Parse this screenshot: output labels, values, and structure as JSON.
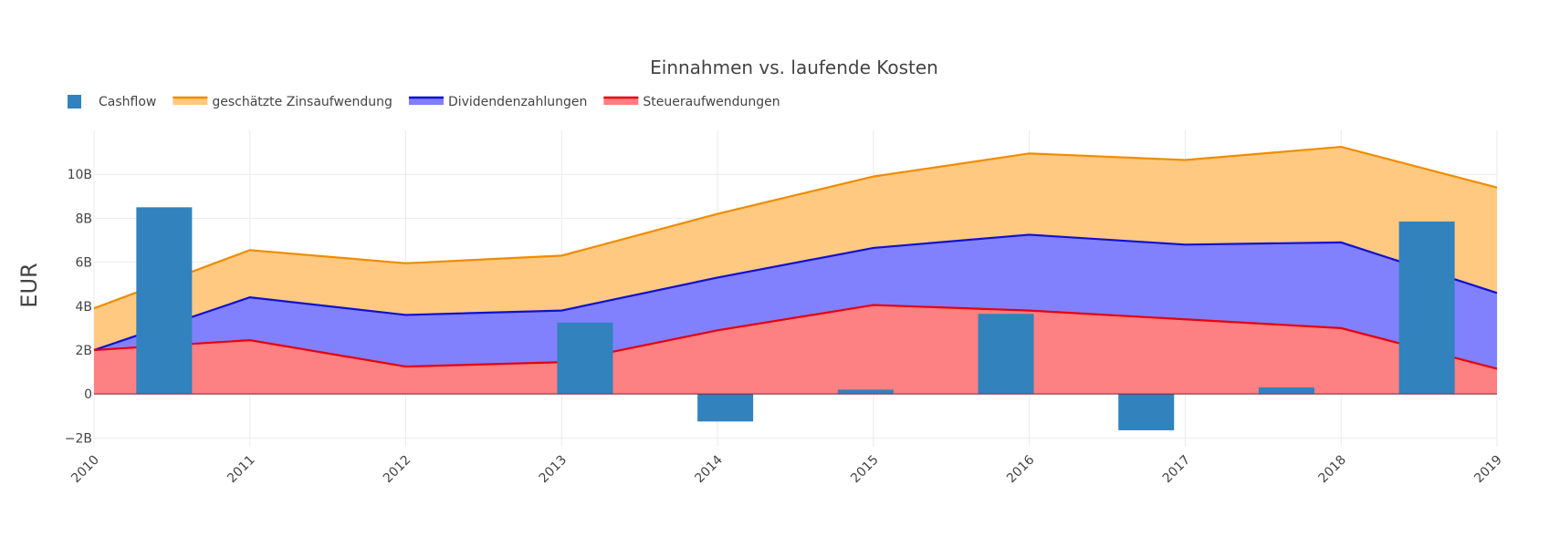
{
  "chart_data": {
    "type": "area",
    "title": "Einnahmen vs. laufende Kosten",
    "ylabel": "EUR",
    "xlabel": "",
    "x": [
      2010,
      2011,
      2012,
      2013,
      2014,
      2015,
      2016,
      2017,
      2018,
      2019
    ],
    "xlim": [
      2010,
      2019
    ],
    "ylim": [
      -2.4,
      12
    ],
    "yticks": [
      -2,
      0,
      2,
      4,
      6,
      8,
      10
    ],
    "ytick_labels": [
      "−2B",
      "0",
      "2B",
      "4B",
      "6B",
      "8B",
      "10B"
    ],
    "legend_position": "top-left",
    "grid": true,
    "series": [
      {
        "name": "Steueraufwendungen",
        "kind": "area",
        "color": "#e8000b",
        "fill": "#ff7f7f",
        "values": [
          2.0,
          2.45,
          1.25,
          1.45,
          2.9,
          4.05,
          3.8,
          3.4,
          3.0,
          1.15
        ]
      },
      {
        "name": "Dividendenzahlungen",
        "kind": "area",
        "color": "#1010d0",
        "fill": "#7f7fff",
        "values": [
          2.0,
          4.4,
          3.6,
          3.8,
          5.3,
          6.65,
          7.25,
          6.8,
          6.9,
          4.6
        ]
      },
      {
        "name": "geschätzte Zinsaufwendung",
        "kind": "area",
        "color": "#f08c00",
        "fill": "#ffc87f",
        "values": [
          3.9,
          6.55,
          5.95,
          6.3,
          8.2,
          9.9,
          10.95,
          10.65,
          11.25,
          9.4
        ]
      },
      {
        "name": "Cashflow",
        "kind": "bar",
        "color": "#3182bd",
        "x": [
          2010.45,
          2013.15,
          2014.05,
          2014.95,
          2015.85,
          2016.75,
          2017.65,
          2018.55
        ],
        "values": [
          8.5,
          3.25,
          -1.25,
          0.2,
          3.65,
          -1.65,
          0.3,
          7.85
        ]
      }
    ],
    "legend_order": [
      "Cashflow",
      "geschätzte Zinsaufwendung",
      "Dividendenzahlungen",
      "Steueraufwendungen"
    ]
  }
}
